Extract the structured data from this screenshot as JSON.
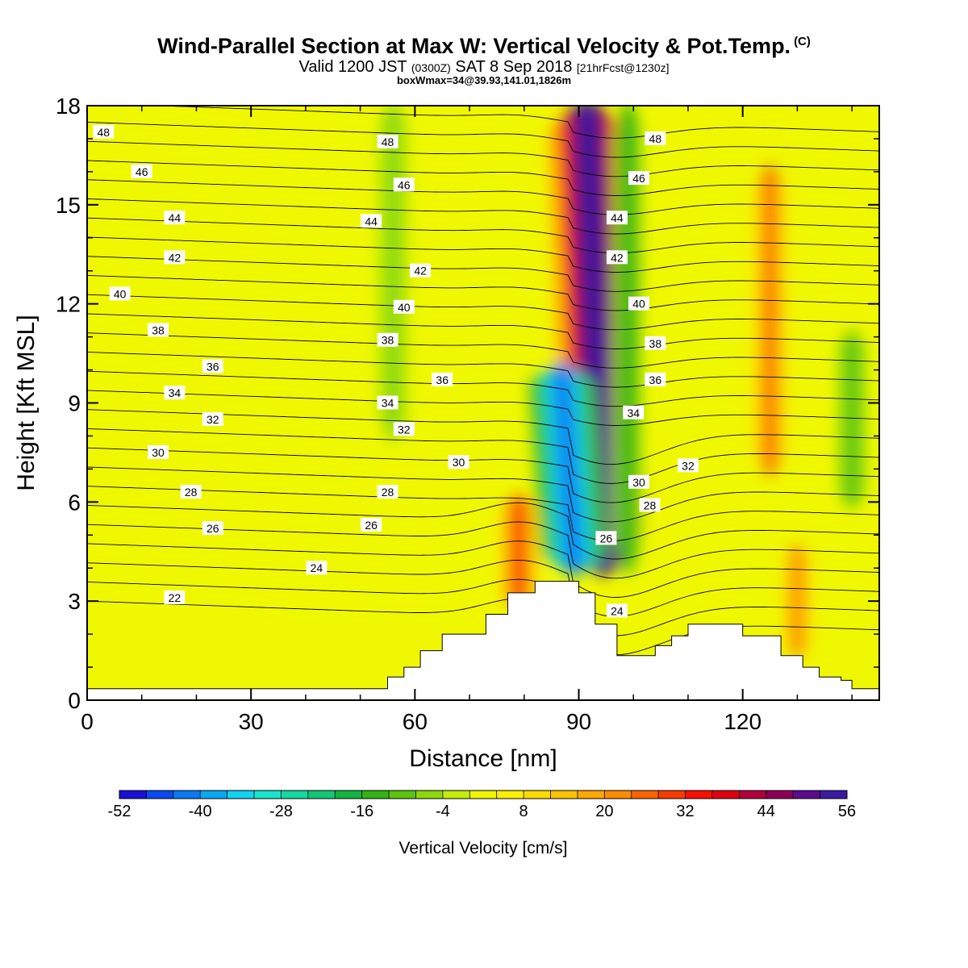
{
  "header": {
    "title": "Wind-Parallel Section at Max W: Vertical Velocity & Pot.Temp.",
    "copyright": "(C)",
    "valid_pre": "Valid 1200 JST",
    "valid_utc": "(0300Z)",
    "valid_date": "SAT 8 Sep 2018",
    "forecast": "[21hrFcst@1230z]",
    "box_info": "boxWmax=34@39.93,141.01,1826m"
  },
  "colors": {
    "background": "#ffffff",
    "frame": "#000000",
    "terrain": "#ffffff",
    "contour": "#000000"
  },
  "chart_data": {
    "type": "heatmap",
    "title": "Wind-Parallel Section at Max W: Vertical Velocity & Pot.Temp.",
    "xlabel": "Distance [nm]",
    "ylabel": "Height [Kft MSL]",
    "xlim": [
      0,
      145
    ],
    "ylim": [
      0,
      18
    ],
    "x_ticks": [
      0,
      30,
      60,
      90,
      120
    ],
    "y_ticks": [
      0,
      3,
      6,
      9,
      12,
      15,
      18
    ],
    "colorbar": {
      "label": "Vertical Velocity [cm/s]",
      "min": -52,
      "max": 56,
      "step": 4,
      "tick_labels": [
        "-52",
        "-40",
        "-28",
        "-16",
        "-4",
        "8",
        "20",
        "32",
        "44",
        "56"
      ],
      "colors": [
        "#1a0fd6",
        "#0a4af0",
        "#0a7af5",
        "#08a8f4",
        "#12d2f2",
        "#18e6cc",
        "#16d8a2",
        "#12c878",
        "#14b43e",
        "#32b414",
        "#5cc40e",
        "#8ed80a",
        "#c4ec06",
        "#f0f800",
        "#fcf000",
        "#fcdc00",
        "#fcc400",
        "#fca800",
        "#fc8c00",
        "#f86400",
        "#f83c00",
        "#f81000",
        "#e00010",
        "#b0003c",
        "#8c0058",
        "#5c0c8c",
        "#3c1aa0"
      ]
    },
    "vertical_velocity_features": [
      {
        "kind": "updraft",
        "x": 93,
        "y_bottom": 4,
        "y_top": 18,
        "peak": 56
      },
      {
        "kind": "updraft",
        "x": 125,
        "y_bottom": 7,
        "y_top": 16,
        "peak": 24
      },
      {
        "kind": "updraft",
        "x": 79,
        "y_bottom": 3,
        "y_top": 6,
        "peak": 28
      },
      {
        "kind": "updraft",
        "x": 130,
        "y_bottom": 1.5,
        "y_top": 4.5,
        "peak": 20
      },
      {
        "kind": "downdraft",
        "x": 88,
        "y_bottom": 4,
        "y_top": 10,
        "peak": -44
      },
      {
        "kind": "downdraft",
        "x": 99,
        "y_bottom": 4,
        "y_top": 18,
        "peak": -16
      },
      {
        "kind": "downdraft",
        "x": 56,
        "y_bottom": 8,
        "y_top": 18,
        "peak": -8
      },
      {
        "kind": "downdraft",
        "x": 140,
        "y_bottom": 6,
        "y_top": 11,
        "peak": -12
      }
    ],
    "terrain_profile": {
      "x": [
        0,
        55,
        55,
        58,
        58,
        61,
        61,
        65,
        65,
        73,
        73,
        77,
        77,
        82,
        82,
        87,
        87,
        90,
        90,
        93,
        93,
        97,
        97,
        104,
        104,
        107,
        107,
        110,
        110,
        120,
        120,
        127,
        127,
        131,
        131,
        134,
        134,
        138,
        138,
        140,
        140,
        145
      ],
      "y": [
        0.35,
        0.35,
        0.7,
        0.7,
        1.0,
        1.0,
        1.5,
        1.5,
        2.0,
        2.0,
        2.6,
        2.6,
        3.25,
        3.25,
        3.6,
        3.6,
        3.6,
        3.6,
        3.25,
        3.25,
        2.3,
        2.3,
        1.35,
        1.35,
        1.65,
        1.65,
        1.95,
        1.95,
        2.3,
        2.3,
        1.95,
        1.95,
        1.35,
        1.35,
        1.0,
        1.0,
        0.7,
        0.7,
        0.6,
        0.6,
        0.35,
        0.35
      ]
    },
    "isentropes_label": "Pot.Temp.",
    "contour_labels": [
      {
        "text": "48",
        "x": 3,
        "y": 17.2
      },
      {
        "text": "46",
        "x": 10,
        "y": 16.0
      },
      {
        "text": "44",
        "x": 16,
        "y": 14.6
      },
      {
        "text": "42",
        "x": 16,
        "y": 13.4
      },
      {
        "text": "40",
        "x": 6,
        "y": 12.3
      },
      {
        "text": "38",
        "x": 13,
        "y": 11.2
      },
      {
        "text": "36",
        "x": 23,
        "y": 10.1
      },
      {
        "text": "34",
        "x": 16,
        "y": 9.3
      },
      {
        "text": "32",
        "x": 23,
        "y": 8.5
      },
      {
        "text": "30",
        "x": 13,
        "y": 7.5
      },
      {
        "text": "28",
        "x": 19,
        "y": 6.3
      },
      {
        "text": "26",
        "x": 23,
        "y": 5.2
      },
      {
        "text": "24",
        "x": 42,
        "y": 4.0
      },
      {
        "text": "22",
        "x": 16,
        "y": 3.1
      },
      {
        "text": "48",
        "x": 55,
        "y": 16.9
      },
      {
        "text": "46",
        "x": 58,
        "y": 15.6
      },
      {
        "text": "44",
        "x": 52,
        "y": 14.5
      },
      {
        "text": "42",
        "x": 61,
        "y": 13.0
      },
      {
        "text": "40",
        "x": 58,
        "y": 11.9
      },
      {
        "text": "38",
        "x": 55,
        "y": 10.9
      },
      {
        "text": "36",
        "x": 65,
        "y": 9.7
      },
      {
        "text": "34",
        "x": 55,
        "y": 9.0
      },
      {
        "text": "32",
        "x": 58,
        "y": 8.2
      },
      {
        "text": "30",
        "x": 68,
        "y": 7.2
      },
      {
        "text": "28",
        "x": 55,
        "y": 6.3
      },
      {
        "text": "26",
        "x": 52,
        "y": 5.3
      },
      {
        "text": "48",
        "x": 104,
        "y": 17.0
      },
      {
        "text": "46",
        "x": 101,
        "y": 15.8
      },
      {
        "text": "44",
        "x": 97,
        "y": 14.6
      },
      {
        "text": "42",
        "x": 97,
        "y": 13.4
      },
      {
        "text": "40",
        "x": 101,
        "y": 12.0
      },
      {
        "text": "38",
        "x": 104,
        "y": 10.8
      },
      {
        "text": "36",
        "x": 104,
        "y": 9.7
      },
      {
        "text": "34",
        "x": 100,
        "y": 8.7
      },
      {
        "text": "32",
        "x": 110,
        "y": 7.1
      },
      {
        "text": "30",
        "x": 101,
        "y": 6.6
      },
      {
        "text": "28",
        "x": 103,
        "y": 5.9
      },
      {
        "text": "26",
        "x": 95,
        "y": 4.9
      },
      {
        "text": "24",
        "x": 97,
        "y": 2.7
      }
    ]
  }
}
